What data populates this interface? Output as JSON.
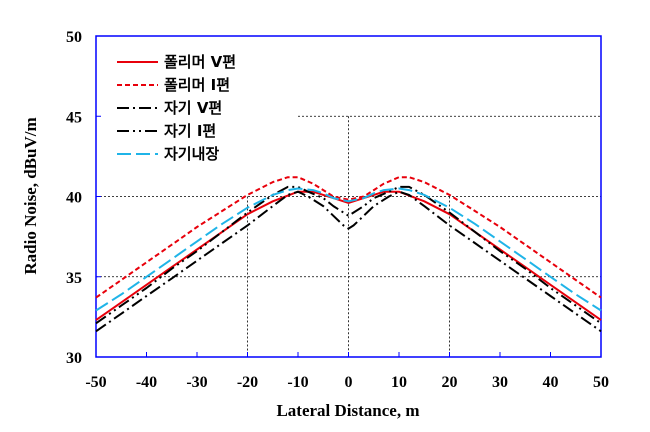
{
  "chart_data": {
    "type": "line",
    "xlabel": "Lateral Distance, m",
    "ylabel": "Radio Noise, dBuV/m",
    "xlim": [
      -50,
      50
    ],
    "ylim": [
      30,
      50
    ],
    "xticks": [
      "-50",
      "-40",
      "-30",
      "-20",
      "-10",
      "0",
      "10",
      "20",
      "30",
      "40",
      "50"
    ],
    "yticks": [
      "30",
      "35",
      "40",
      "45",
      "50"
    ],
    "grid": "dashed, partial",
    "legend_position": "top-left",
    "series": [
      {
        "name": "폴리머 V편",
        "color": "#e8000b",
        "dash": "solid",
        "points": [
          [
            -50,
            32.3
          ],
          [
            -45,
            33.4
          ],
          [
            -40,
            34.5
          ],
          [
            -35,
            35.6
          ],
          [
            -30,
            36.7
          ],
          [
            -25,
            37.8
          ],
          [
            -20,
            38.9
          ],
          [
            -15,
            39.7
          ],
          [
            -10,
            40.3
          ],
          [
            -7,
            40.3
          ],
          [
            -5,
            40.1
          ],
          [
            -3,
            39.9
          ],
          [
            -1,
            39.7
          ],
          [
            0,
            39.6
          ],
          [
            1,
            39.7
          ],
          [
            3,
            39.9
          ],
          [
            5,
            40.1
          ],
          [
            7,
            40.3
          ],
          [
            10,
            40.3
          ],
          [
            15,
            39.7
          ],
          [
            20,
            38.9
          ],
          [
            25,
            37.8
          ],
          [
            30,
            36.7
          ],
          [
            35,
            35.6
          ],
          [
            40,
            34.5
          ],
          [
            45,
            33.4
          ],
          [
            50,
            32.3
          ]
        ]
      },
      {
        "name": "폴리머 I편",
        "color": "#e8000b",
        "dash": "short-dash",
        "points": [
          [
            -50,
            33.7
          ],
          [
            -45,
            34.8
          ],
          [
            -40,
            35.9
          ],
          [
            -35,
            37.0
          ],
          [
            -30,
            38.1
          ],
          [
            -25,
            39.1
          ],
          [
            -20,
            40.1
          ],
          [
            -15,
            40.9
          ],
          [
            -12,
            41.2
          ],
          [
            -10,
            41.2
          ],
          [
            -7,
            40.8
          ],
          [
            -5,
            40.4
          ],
          [
            -3,
            40.0
          ],
          [
            0,
            39.8
          ],
          [
            3,
            40.0
          ],
          [
            5,
            40.4
          ],
          [
            7,
            40.8
          ],
          [
            10,
            41.2
          ],
          [
            12,
            41.2
          ],
          [
            15,
            40.9
          ],
          [
            20,
            40.1
          ],
          [
            25,
            39.1
          ],
          [
            30,
            38.1
          ],
          [
            35,
            37.0
          ],
          [
            40,
            35.9
          ],
          [
            45,
            34.8
          ],
          [
            50,
            33.7
          ]
        ]
      },
      {
        "name": "자기 V편",
        "color": "#000000",
        "dash": "dash-dot",
        "points": [
          [
            -50,
            31.6
          ],
          [
            -45,
            32.7
          ],
          [
            -40,
            33.8
          ],
          [
            -35,
            34.9
          ],
          [
            -30,
            36.0
          ],
          [
            -25,
            37.1
          ],
          [
            -20,
            38.2
          ],
          [
            -15,
            39.4
          ],
          [
            -12,
            40.1
          ],
          [
            -10,
            40.3
          ],
          [
            -8,
            40.0
          ],
          [
            -5,
            39.4
          ],
          [
            -3,
            38.8
          ],
          [
            -1,
            38.2
          ],
          [
            0,
            38.0
          ],
          [
            1,
            38.2
          ],
          [
            3,
            38.8
          ],
          [
            5,
            39.4
          ],
          [
            8,
            40.0
          ],
          [
            10,
            40.3
          ],
          [
            12,
            40.1
          ],
          [
            15,
            39.4
          ],
          [
            20,
            38.2
          ],
          [
            25,
            37.1
          ],
          [
            30,
            36.0
          ],
          [
            35,
            34.9
          ],
          [
            40,
            33.8
          ],
          [
            45,
            32.7
          ],
          [
            50,
            31.6
          ]
        ]
      },
      {
        "name": "자기 I편",
        "color": "#000000",
        "dash": "dash-dot-dot",
        "points": [
          [
            -50,
            32.1
          ],
          [
            -45,
            33.2
          ],
          [
            -40,
            34.3
          ],
          [
            -35,
            35.5
          ],
          [
            -30,
            36.6
          ],
          [
            -25,
            37.8
          ],
          [
            -20,
            39.0
          ],
          [
            -15,
            40.1
          ],
          [
            -12,
            40.6
          ],
          [
            -10,
            40.6
          ],
          [
            -8,
            40.3
          ],
          [
            -5,
            39.9
          ],
          [
            -3,
            39.4
          ],
          [
            -1,
            39.0
          ],
          [
            0,
            38.8
          ],
          [
            1,
            39.0
          ],
          [
            3,
            39.4
          ],
          [
            5,
            39.9
          ],
          [
            8,
            40.3
          ],
          [
            10,
            40.6
          ],
          [
            12,
            40.6
          ],
          [
            15,
            40.1
          ],
          [
            20,
            39.0
          ],
          [
            25,
            37.8
          ],
          [
            30,
            36.6
          ],
          [
            35,
            35.5
          ],
          [
            40,
            34.3
          ],
          [
            45,
            33.2
          ],
          [
            50,
            32.1
          ]
        ]
      },
      {
        "name": "자기내장",
        "color": "#1fb4e8",
        "dash": "long-dash",
        "points": [
          [
            -50,
            32.9
          ],
          [
            -45,
            33.9
          ],
          [
            -40,
            35.0
          ],
          [
            -35,
            36.1
          ],
          [
            -30,
            37.2
          ],
          [
            -25,
            38.3
          ],
          [
            -20,
            39.3
          ],
          [
            -15,
            40.1
          ],
          [
            -12,
            40.4
          ],
          [
            -10,
            40.5
          ],
          [
            -7,
            40.4
          ],
          [
            -5,
            40.2
          ],
          [
            -3,
            39.9
          ],
          [
            0,
            39.7
          ],
          [
            3,
            39.9
          ],
          [
            5,
            40.2
          ],
          [
            7,
            40.4
          ],
          [
            10,
            40.5
          ],
          [
            12,
            40.4
          ],
          [
            15,
            40.1
          ],
          [
            20,
            39.3
          ],
          [
            25,
            38.3
          ],
          [
            30,
            37.2
          ],
          [
            35,
            36.1
          ],
          [
            40,
            35.0
          ],
          [
            45,
            33.9
          ],
          [
            50,
            32.9
          ]
        ]
      }
    ]
  }
}
